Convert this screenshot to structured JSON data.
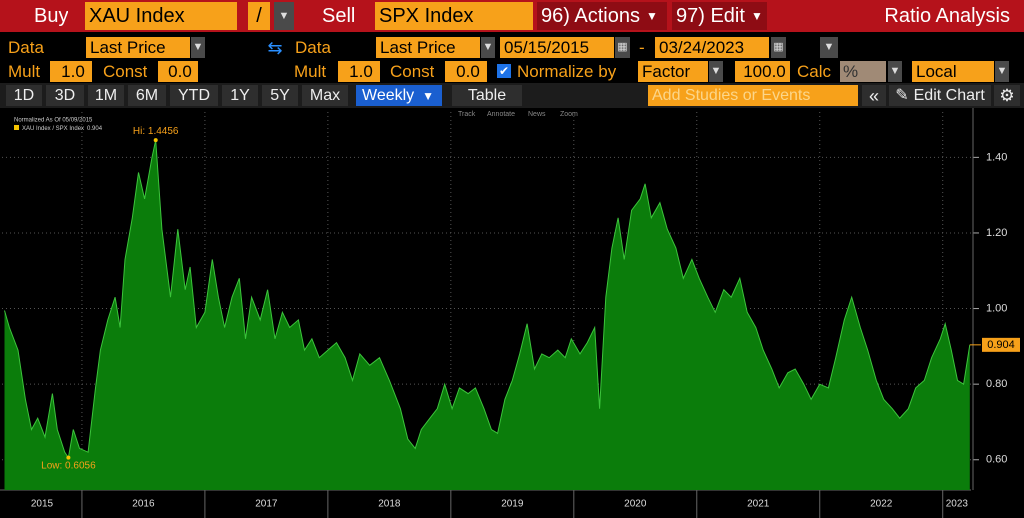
{
  "header": {
    "buy": "Buy",
    "security_1": "XAU Index",
    "operator": "/",
    "sell": "Sell",
    "security_2": "SPX Index",
    "actions": "96) Actions",
    "edit": "97) Edit",
    "title": "Ratio Analysis"
  },
  "row_1": {
    "data_label_1": "Data",
    "field_1": "Last Price",
    "data_label_2": "Data",
    "field_2": "Last Price",
    "start_date": "05/15/2015",
    "end_date": "03/24/2023"
  },
  "row_2": {
    "mult_label_1": "Mult",
    "mult_1": "1.0",
    "const_label_1": "Const",
    "const_1": "0.0",
    "mult_label_2": "Mult",
    "mult_2": "1.0",
    "const_label_2": "Const",
    "const_2": "0.0",
    "normalize_label": "Normalize by",
    "normalize_field": "Factor",
    "factor": "100.0",
    "calc_label": "Calc",
    "calc": "%",
    "currency": "Local"
  },
  "toolbar": {
    "periods": [
      "1D",
      "3D",
      "1M",
      "6M",
      "YTD",
      "1Y",
      "5Y",
      "Max"
    ],
    "frequency": "Weekly",
    "table": "Table",
    "studies_placeholder": "Add Studies or Events",
    "edit_chart": "Edit Chart"
  },
  "chart_tools": [
    "Track",
    "Annotate",
    "News",
    "Zoom"
  ],
  "chart_data": {
    "type": "area",
    "legend_title": "Normalized As Of 05/09/2015",
    "high_label": "Hi: 1.4456",
    "low_label": "Low: 0.6056",
    "last_value_label": "0.904",
    "x": [
      2015.37,
      2015.41,
      2015.48,
      2015.54,
      2015.59,
      2015.64,
      2015.7,
      2015.76,
      2015.8,
      2015.86,
      2015.89,
      2015.93,
      2015.98,
      2016.05,
      2016.11,
      2016.15,
      2016.21,
      2016.27,
      2016.31,
      2016.35,
      2016.41,
      2016.46,
      2016.51,
      2016.57,
      2016.6,
      2016.65,
      2016.72,
      2016.78,
      2016.84,
      2016.88,
      2016.93,
      2017.0,
      2017.06,
      2017.11,
      2017.16,
      2017.22,
      2017.28,
      2017.33,
      2017.38,
      2017.45,
      2017.51,
      2017.57,
      2017.63,
      2017.69,
      2017.76,
      2017.81,
      2017.87,
      2017.93,
      2018.0,
      2018.07,
      2018.14,
      2018.2,
      2018.26,
      2018.34,
      2018.42,
      2018.5,
      2018.59,
      2018.65,
      2018.71,
      2018.76,
      2018.83,
      2018.89,
      2018.95,
      2019.01,
      2019.07,
      2019.14,
      2019.2,
      2019.27,
      2019.33,
      2019.38,
      2019.44,
      2019.5,
      2019.56,
      2019.62,
      2019.68,
      2019.74,
      2019.8,
      2019.87,
      2019.93,
      2019.98,
      2020.05,
      2020.11,
      2020.17,
      2020.21,
      2020.26,
      2020.31,
      2020.36,
      2020.41,
      2020.47,
      2020.54,
      2020.58,
      2020.63,
      2020.7,
      2020.76,
      2020.83,
      2020.89,
      2020.96,
      2021.02,
      2021.09,
      2021.15,
      2021.22,
      2021.28,
      2021.35,
      2021.41,
      2021.48,
      2021.54,
      2021.61,
      2021.67,
      2021.74,
      2021.8,
      2021.87,
      2021.93,
      2022.0,
      2022.07,
      2022.13,
      2022.2,
      2022.26,
      2022.33,
      2022.39,
      2022.46,
      2022.52,
      2022.59,
      2022.65,
      2022.72,
      2022.78,
      2022.85,
      2022.91,
      2022.98,
      2023.02,
      2023.07,
      2023.12,
      2023.17,
      2023.22
    ],
    "series": [
      {
        "name": "XAU Index / SPX Index",
        "color": "#0b7d0b",
        "line_color": "#3cc43c",
        "values": [
          0.995,
          0.95,
          0.89,
          0.76,
          0.68,
          0.71,
          0.66,
          0.775,
          0.68,
          0.62,
          0.6056,
          0.68,
          0.63,
          0.62,
          0.79,
          0.89,
          0.97,
          1.03,
          0.95,
          1.13,
          1.24,
          1.36,
          1.29,
          1.4,
          1.4456,
          1.21,
          1.03,
          1.21,
          1.05,
          1.11,
          0.95,
          0.99,
          1.13,
          1.03,
          0.95,
          1.03,
          1.08,
          0.92,
          1.03,
          0.97,
          1.05,
          0.92,
          0.99,
          0.95,
          0.97,
          0.89,
          0.92,
          0.87,
          0.89,
          0.91,
          0.87,
          0.81,
          0.88,
          0.85,
          0.87,
          0.81,
          0.735,
          0.655,
          0.63,
          0.68,
          0.71,
          0.735,
          0.8,
          0.735,
          0.79,
          0.775,
          0.79,
          0.735,
          0.68,
          0.67,
          0.76,
          0.81,
          0.88,
          0.96,
          0.84,
          0.88,
          0.87,
          0.89,
          0.87,
          0.92,
          0.88,
          0.91,
          0.95,
          0.735,
          1.03,
          1.16,
          1.24,
          1.13,
          1.26,
          1.29,
          1.33,
          1.24,
          1.28,
          1.21,
          1.16,
          1.08,
          1.13,
          1.08,
          1.03,
          0.99,
          1.05,
          1.03,
          1.08,
          0.99,
          0.95,
          0.89,
          0.84,
          0.79,
          0.83,
          0.84,
          0.8,
          0.76,
          0.8,
          0.79,
          0.87,
          0.97,
          1.03,
          0.95,
          0.89,
          0.81,
          0.76,
          0.735,
          0.71,
          0.735,
          0.79,
          0.81,
          0.87,
          0.92,
          0.96,
          0.89,
          0.81,
          0.8,
          0.904
        ]
      }
    ],
    "xlim": [
      2015.35,
      2023.23
    ],
    "xticks": [
      2016,
      2017,
      2018,
      2019,
      2020,
      2021,
      2022,
      2023
    ],
    "year_labels": [
      "2015",
      "2016",
      "2017",
      "2018",
      "2019",
      "2020",
      "2021",
      "2022",
      "2023"
    ],
    "ylim": [
      0.52,
      1.52
    ],
    "yticks": [
      {
        "value": 0.6,
        "label": "0.60"
      },
      {
        "value": 0.8,
        "label": "0.80"
      },
      {
        "value": 1.0,
        "label": "1.00"
      },
      {
        "value": 1.2,
        "label": "1.20"
      },
      {
        "value": 1.4,
        "label": "1.40"
      }
    ],
    "grid": true
  }
}
